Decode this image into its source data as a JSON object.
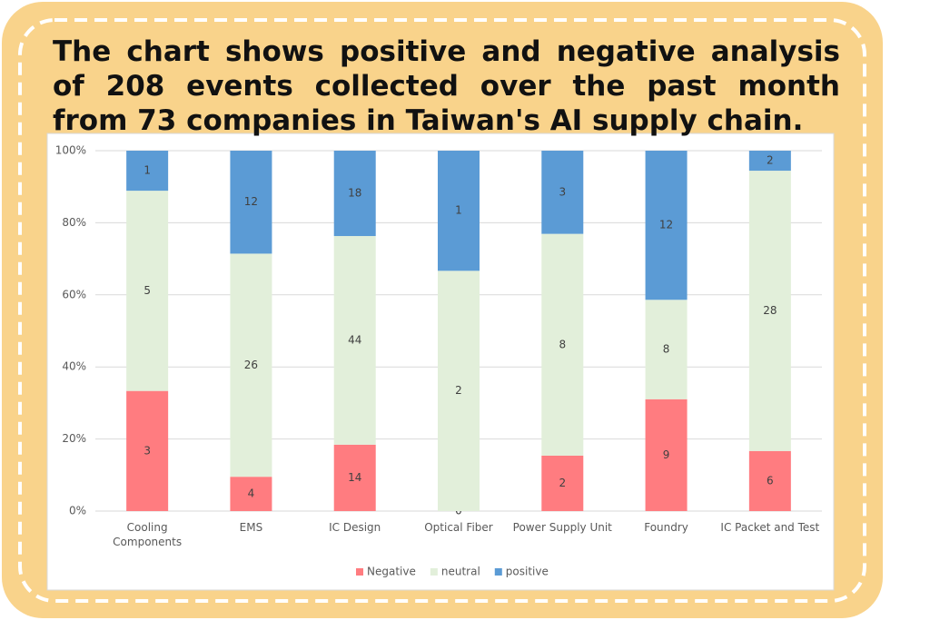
{
  "chart_data": {
    "type": "bar",
    "stacking": "percent",
    "title": "The chart shows positive and negative analysis of 208 events collected over the past month from 73 companies in Taiwan's AI supply chain.",
    "categories": [
      "Cooling Components",
      "EMS",
      "IC Design",
      "Optical Fiber",
      "Power Supply Unit",
      "Foundry",
      "IC Packet and Test"
    ],
    "series": [
      {
        "name": "Negative",
        "color": "#ff7c80",
        "values": [
          3,
          4,
          14,
          0,
          2,
          9,
          6
        ]
      },
      {
        "name": "neutral",
        "color": "#e2efda",
        "values": [
          5,
          26,
          44,
          2,
          8,
          8,
          28
        ]
      },
      {
        "name": "positive",
        "color": "#5b9bd5",
        "values": [
          1,
          12,
          18,
          1,
          3,
          12,
          2
        ]
      }
    ],
    "ylim": [
      0,
      100
    ],
    "yticks": [
      {
        "value": 0,
        "label": "0%"
      },
      {
        "value": 20,
        "label": "20%"
      },
      {
        "value": 40,
        "label": "40%"
      },
      {
        "value": 60,
        "label": "60%"
      },
      {
        "value": 80,
        "label": "80%"
      },
      {
        "value": 100,
        "label": "100%"
      }
    ],
    "grid": true,
    "legend": "bottom"
  }
}
